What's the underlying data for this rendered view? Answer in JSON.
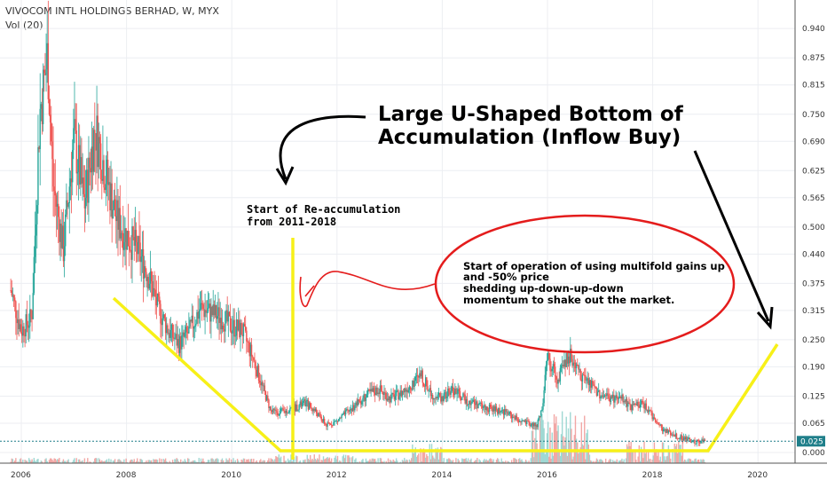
{
  "header": {
    "title": "VIVOCOM INTL HOLDINGS BERHAD, W, MYX",
    "volume_label": "Vol (20)"
  },
  "colors": {
    "up": "#26a69a",
    "down": "#ef5350",
    "volume_up": "#9fd8d3",
    "volume_down": "#f2a7a5",
    "annotation_line": "#f7f018",
    "ellipse": "#e41c1c",
    "last_price_badge": "#1f7f8a",
    "grid": "#eceef2"
  },
  "chart_data": {
    "type": "candlestick",
    "x_ticks": [
      "2006",
      "2008",
      "2010",
      "2012",
      "2014",
      "2016",
      "2018",
      "2020"
    ],
    "y_ticks": [
      "0.940",
      "0.875",
      "0.815",
      "0.750",
      "0.690",
      "0.625",
      "0.565",
      "0.500",
      "0.440",
      "0.375",
      "0.315",
      "0.250",
      "0.190",
      "0.125",
      "0.065",
      "0.000"
    ],
    "last_price": "0.025",
    "ylim": [
      0.0,
      0.96
    ],
    "grid": true,
    "close_path": [
      [
        2005.8,
        0.36
      ],
      [
        2006.0,
        0.27
      ],
      [
        2006.2,
        0.3
      ],
      [
        2006.35,
        0.75
      ],
      [
        2006.5,
        0.88
      ],
      [
        2006.6,
        0.6
      ],
      [
        2006.8,
        0.45
      ],
      [
        2007.0,
        0.7
      ],
      [
        2007.2,
        0.55
      ],
      [
        2007.4,
        0.72
      ],
      [
        2007.6,
        0.62
      ],
      [
        2007.8,
        0.52
      ],
      [
        2008.0,
        0.48
      ],
      [
        2008.2,
        0.45
      ],
      [
        2008.4,
        0.4
      ],
      [
        2008.6,
        0.32
      ],
      [
        2008.8,
        0.27
      ],
      [
        2009.0,
        0.24
      ],
      [
        2009.2,
        0.27
      ],
      [
        2009.4,
        0.32
      ],
      [
        2009.6,
        0.31
      ],
      [
        2009.8,
        0.3
      ],
      [
        2010.0,
        0.28
      ],
      [
        2010.2,
        0.27
      ],
      [
        2010.4,
        0.21
      ],
      [
        2010.6,
        0.14
      ],
      [
        2010.75,
        0.09
      ],
      [
        2011.0,
        0.09
      ],
      [
        2011.2,
        0.1
      ],
      [
        2011.4,
        0.11
      ],
      [
        2011.6,
        0.09
      ],
      [
        2011.8,
        0.06
      ],
      [
        2012.0,
        0.07
      ],
      [
        2012.2,
        0.09
      ],
      [
        2012.4,
        0.11
      ],
      [
        2012.6,
        0.13
      ],
      [
        2012.8,
        0.14
      ],
      [
        2013.0,
        0.12
      ],
      [
        2013.2,
        0.13
      ],
      [
        2013.4,
        0.15
      ],
      [
        2013.6,
        0.17
      ],
      [
        2013.8,
        0.13
      ],
      [
        2014.0,
        0.12
      ],
      [
        2014.2,
        0.14
      ],
      [
        2014.4,
        0.12
      ],
      [
        2014.6,
        0.11
      ],
      [
        2014.8,
        0.1
      ],
      [
        2015.0,
        0.095
      ],
      [
        2015.2,
        0.09
      ],
      [
        2015.4,
        0.075
      ],
      [
        2015.6,
        0.065
      ],
      [
        2015.8,
        0.06
      ],
      [
        2015.9,
        0.1
      ],
      [
        2016.0,
        0.21
      ],
      [
        2016.2,
        0.16
      ],
      [
        2016.4,
        0.22
      ],
      [
        2016.6,
        0.18
      ],
      [
        2016.8,
        0.15
      ],
      [
        2017.0,
        0.13
      ],
      [
        2017.2,
        0.12
      ],
      [
        2017.4,
        0.12
      ],
      [
        2017.6,
        0.1
      ],
      [
        2017.8,
        0.11
      ],
      [
        2018.0,
        0.08
      ],
      [
        2018.2,
        0.05
      ],
      [
        2018.4,
        0.04
      ],
      [
        2018.6,
        0.03
      ],
      [
        2018.8,
        0.025
      ],
      [
        2019.0,
        0.025
      ]
    ]
  },
  "annotations": {
    "title_line1": "Large U-Shaped Bottom of",
    "title_line2": "Accumulation (Inflow Buy)",
    "reaccum_line1": "Start of Re-accumulation",
    "reaccum_line2": "from 2011-2018",
    "ellipse_lines": [
      "Start of operation of using multifold gains up",
      "and -50% price",
      "shedding up-down-up-down",
      "momentum to shake out the market."
    ]
  }
}
